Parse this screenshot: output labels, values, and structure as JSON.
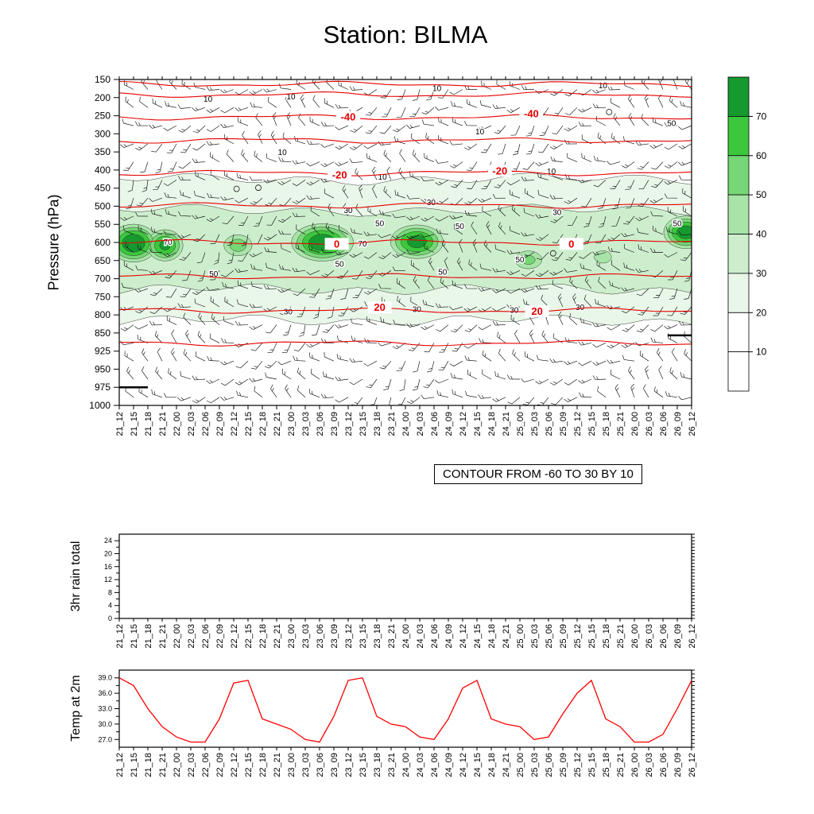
{
  "title": "Station: BILMA",
  "chart_data": [
    {
      "type": "heatmap",
      "name": "pressure-time-section",
      "title": "Station: BILMA",
      "ylabel": "Pressure (hPa)",
      "yticks": [
        150,
        200,
        250,
        300,
        350,
        400,
        450,
        500,
        550,
        600,
        650,
        700,
        750,
        800,
        850,
        925,
        950,
        975,
        1000
      ],
      "categories": [
        "21_12",
        "21_15",
        "21_18",
        "21_21",
        "22_00",
        "22_03",
        "22_06",
        "22_09",
        "22_12",
        "22_15",
        "22_18",
        "22_21",
        "23_00",
        "23_03",
        "23_06",
        "23_09",
        "23_12",
        "23_15",
        "23_18",
        "23_21",
        "24_00",
        "24_03",
        "24_06",
        "24_09",
        "24_12",
        "24_15",
        "24_18",
        "24_21",
        "25_00",
        "25_03",
        "25_06",
        "25_09",
        "25_12",
        "25_15",
        "25_18",
        "25_21",
        "26_00",
        "26_03",
        "26_06",
        "26_09",
        "26_12"
      ],
      "shading": {
        "levels": [
          10,
          20,
          30,
          40,
          50,
          60,
          70
        ],
        "level_colors": {
          "20": "#e9f7e9",
          "30": "#cdeecd",
          "40": "#a8e4a8",
          "50": "#76d776",
          "60": "#3cc83c",
          "70": "#169a30"
        },
        "background_bands": [
          {
            "threshold": 20,
            "p_top": 425,
            "p_bottom": 815,
            "color": "#e9f7e9"
          },
          {
            "threshold": 30,
            "p_top": 511,
            "p_bottom": 729,
            "color": "#cdeecd"
          }
        ],
        "cells": [
          {
            "x_index": 1.0,
            "pressure": 602,
            "peak": 82,
            "sx": 2.0,
            "sp": 62
          },
          {
            "x_index": 3.2,
            "pressure": 608,
            "peak": 74,
            "sx": 1.6,
            "sp": 55
          },
          {
            "x_index": 8.3,
            "pressure": 608,
            "peak": 56,
            "sx": 1.7,
            "sp": 50
          },
          {
            "x_index": 14.2,
            "pressure": 600,
            "peak": 80,
            "sx": 2.6,
            "sp": 62
          },
          {
            "x_index": 20.8,
            "pressure": 598,
            "peak": 76,
            "sx": 2.3,
            "sp": 58
          },
          {
            "x_index": 28.6,
            "pressure": 648,
            "peak": 54,
            "sx": 1.7,
            "sp": 45
          },
          {
            "x_index": 33.8,
            "pressure": 640,
            "peak": 48,
            "sx": 1.4,
            "sp": 40
          },
          {
            "x_index": 39.6,
            "pressure": 572,
            "peak": 78,
            "sx": 1.9,
            "sp": 55
          }
        ],
        "shading_labels": [
          {
            "text": "10",
            "fx": 0.155,
            "p": 205
          },
          {
            "text": "10",
            "fx": 0.3,
            "p": 198
          },
          {
            "text": "10",
            "fx": 0.285,
            "p": 352
          },
          {
            "text": "10",
            "fx": 0.46,
            "p": 420
          },
          {
            "text": "10",
            "fx": 0.555,
            "p": 175
          },
          {
            "text": "10",
            "fx": 0.63,
            "p": 295
          },
          {
            "text": "10",
            "fx": 0.755,
            "p": 405
          },
          {
            "text": "10",
            "fx": 0.845,
            "p": 168
          },
          {
            "text": "30",
            "fx": 0.4,
            "p": 512
          },
          {
            "text": "30",
            "fx": 0.545,
            "p": 490
          },
          {
            "text": "30",
            "fx": 0.765,
            "p": 518
          },
          {
            "text": "30",
            "fx": 0.295,
            "p": 792
          },
          {
            "text": "30",
            "fx": 0.52,
            "p": 786
          },
          {
            "text": "30",
            "fx": 0.69,
            "p": 788
          },
          {
            "text": "30",
            "fx": 0.805,
            "p": 780
          },
          {
            "text": "50",
            "fx": 0.165,
            "p": 688
          },
          {
            "text": "50",
            "fx": 0.385,
            "p": 660
          },
          {
            "text": "50",
            "fx": 0.565,
            "p": 682
          },
          {
            "text": "50",
            "fx": 0.7,
            "p": 648
          },
          {
            "text": "50",
            "fx": 0.455,
            "p": 548
          },
          {
            "text": "50",
            "fx": 0.595,
            "p": 556
          },
          {
            "text": "50",
            "fx": 0.975,
            "p": 548
          },
          {
            "text": "50",
            "fx": 0.965,
            "p": 272
          },
          {
            "text": "70",
            "fx": 0.085,
            "p": 600
          },
          {
            "text": "70",
            "fx": 0.425,
            "p": 604
          }
        ],
        "calm_markers": [
          {
            "fx": 0.205,
            "p": 452
          },
          {
            "fx": 0.243,
            "p": 449
          },
          {
            "fx": 0.758,
            "p": 630
          },
          {
            "fx": 0.856,
            "p": 240
          }
        ]
      },
      "temperature_contours": {
        "note": "CONTOUR FROM -60 TO 30 BY 10",
        "color": "#e60000",
        "lines": [
          {
            "value": -60,
            "pressure": 163,
            "label_at": []
          },
          {
            "value": -50,
            "pressure": 192,
            "label_at": []
          },
          {
            "value": -40,
            "pressure": 254,
            "label_at": [
              0.4,
              0.72
            ]
          },
          {
            "value": -30,
            "pressure": 318,
            "label_at": []
          },
          {
            "value": -20,
            "pressure": 408,
            "label_at": [
              0.385,
              0.665
            ]
          },
          {
            "value": -10,
            "pressure": 498,
            "label_at": []
          },
          {
            "value": 0,
            "pressure": 600,
            "label_at": [
              0.38,
              0.79
            ]
          },
          {
            "value": 10,
            "pressure": 694,
            "label_at": []
          },
          {
            "value": 20,
            "pressure": 788,
            "label_at": [
              0.455,
              0.73
            ]
          },
          {
            "value": 30,
            "pressure": 892,
            "label_at": []
          }
        ]
      },
      "colorbar": {
        "tick_labels": [
          70,
          60,
          50,
          40,
          30,
          20,
          10
        ],
        "box_colors_top_to_bottom": [
          "#169a30",
          "#3cc83c",
          "#76d776",
          "#a8e4a8",
          "#cdeecd",
          "#e9f7e9",
          "#ffffff",
          "#ffffff"
        ]
      },
      "wind_barbs": {
        "description": "wind barbs at every time step and pressure level",
        "color": "#111111"
      },
      "surface_marks": [
        {
          "x_frac_start": 0.0,
          "x_frac_end": 0.05,
          "pressure": 975
        },
        {
          "x_frac_start": 0.958,
          "x_frac_end": 1.0,
          "pressure": 860
        }
      ]
    },
    {
      "type": "line",
      "name": "rain-panel",
      "ylabel": "3hr rain total",
      "yticks": [
        0,
        4,
        8,
        12,
        16,
        20,
        24
      ],
      "ylim": [
        0,
        26
      ],
      "categories": [
        "21_12",
        "21_15",
        "21_18",
        "21_21",
        "22_00",
        "22_03",
        "22_06",
        "22_09",
        "22_12",
        "22_15",
        "22_18",
        "22_21",
        "23_00",
        "23_03",
        "23_06",
        "23_09",
        "23_12",
        "23_15",
        "23_18",
        "23_21",
        "24_00",
        "24_03",
        "24_06",
        "24_09",
        "24_12",
        "24_15",
        "24_18",
        "24_21",
        "25_00",
        "25_03",
        "25_06",
        "25_09",
        "25_12",
        "25_15",
        "25_18",
        "25_21",
        "26_00",
        "26_03",
        "26_06",
        "26_09",
        "26_12"
      ],
      "values": []
    },
    {
      "type": "line",
      "name": "temp-panel",
      "ylabel": "Temp at 2m",
      "yticks": [
        27,
        30,
        33,
        36,
        39
      ],
      "ylim": [
        25.5,
        40.5
      ],
      "line_color": "#ff0000",
      "categories": [
        "21_12",
        "21_15",
        "21_18",
        "21_21",
        "22_00",
        "22_03",
        "22_06",
        "22_09",
        "22_12",
        "22_15",
        "22_18",
        "22_21",
        "23_00",
        "23_03",
        "23_06",
        "23_09",
        "23_12",
        "23_15",
        "23_18",
        "23_21",
        "24_00",
        "24_03",
        "24_06",
        "24_09",
        "24_12",
        "24_15",
        "24_18",
        "24_21",
        "25_00",
        "25_03",
        "25_06",
        "25_09",
        "25_12",
        "25_15",
        "25_18",
        "25_21",
        "26_00",
        "26_03",
        "26_06",
        "26_09",
        "26_12"
      ],
      "values": [
        39.0,
        37.5,
        33.0,
        29.5,
        27.5,
        26.5,
        26.5,
        31.0,
        38.0,
        38.5,
        31.0,
        30.0,
        29.0,
        27.0,
        26.5,
        31.5,
        38.5,
        39.0,
        31.5,
        30.0,
        29.5,
        27.5,
        27.0,
        31.0,
        37.0,
        38.5,
        31.0,
        30.0,
        29.5,
        27.0,
        27.5,
        32.0,
        36.0,
        38.5,
        31.0,
        29.5,
        26.5,
        26.5,
        28.0,
        33.0,
        38.5
      ]
    }
  ]
}
